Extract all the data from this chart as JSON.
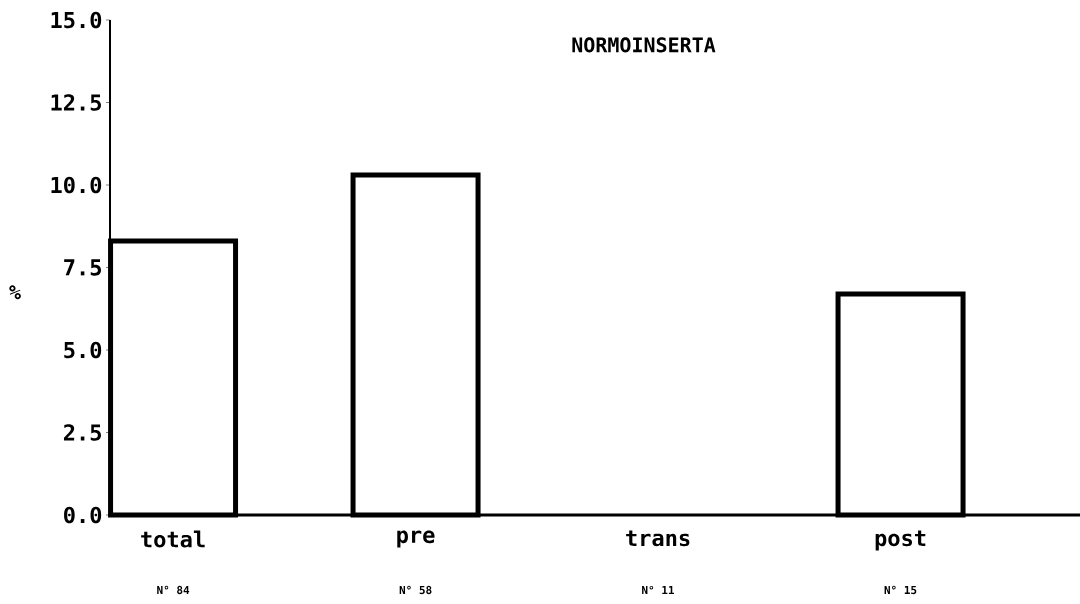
{
  "chart_data": {
    "type": "bar",
    "title": "NORMOINSERTA",
    "ylabel": "%",
    "categories": [
      "total",
      "pre",
      "trans",
      "post"
    ],
    "values": [
      8.3,
      10.3,
      0,
      6.7
    ],
    "color": "#ffffff",
    "ylim": [
      0,
      15
    ],
    "yticks": [
      {
        "value": 0,
        "label": "0.0"
      },
      {
        "value": 2.5,
        "label": "2.5"
      },
      {
        "value": 5,
        "label": "5.0"
      },
      {
        "value": 7.5,
        "label": "7.5"
      },
      {
        "value": 10,
        "label": "10.0"
      },
      {
        "value": 12.5,
        "label": "12.5"
      },
      {
        "value": 15,
        "label": "15.0"
      }
    ],
    "annotations": [
      "N° 84",
      "N° 58",
      "N° 11",
      "N° 15"
    ],
    "grid": false
  }
}
